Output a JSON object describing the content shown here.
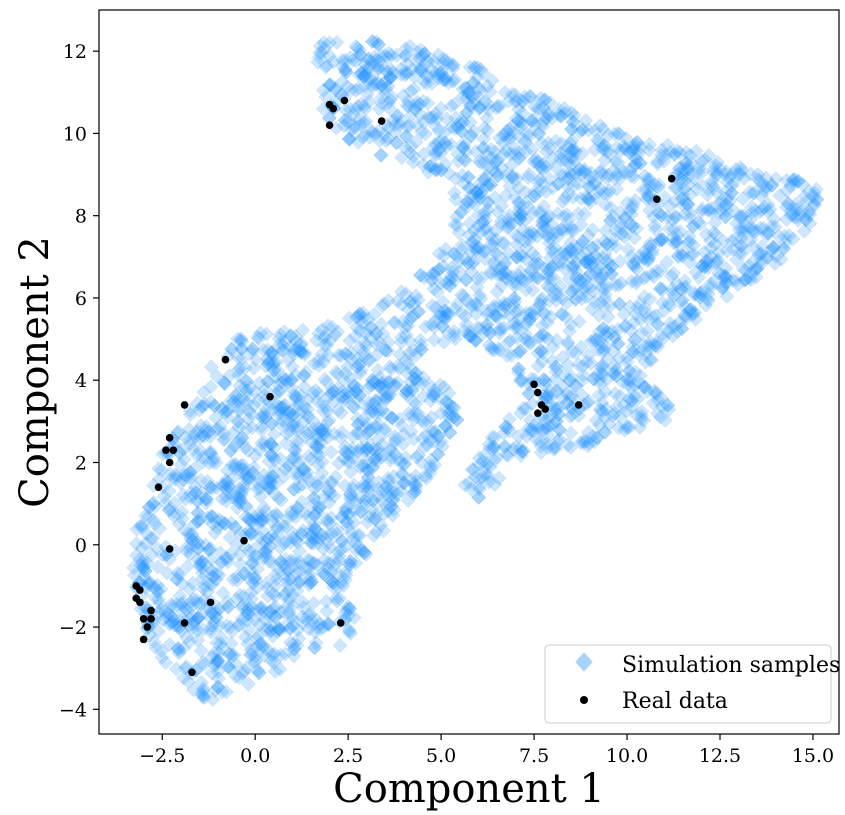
{
  "chart_data": {
    "type": "scatter",
    "title": "",
    "xlabel": "Component 1",
    "ylabel": "Component 2",
    "xlim": [
      -4.2,
      15.7
    ],
    "ylim": [
      -4.6,
      13.0
    ],
    "xticks": [
      -2.5,
      0.0,
      2.5,
      5.0,
      7.5,
      10.0,
      12.5,
      15.0
    ],
    "xtick_labels": [
      "−2.5",
      "0.0",
      "2.5",
      "5.0",
      "7.5",
      "10.0",
      "12.5",
      "15.0"
    ],
    "yticks": [
      -4,
      -2,
      0,
      2,
      4,
      6,
      8,
      10,
      12
    ],
    "ytick_labels": [
      "−4",
      "−2",
      "0",
      "2",
      "4",
      "6",
      "8",
      "10",
      "12"
    ],
    "grid": false,
    "legend_position": "lower-right",
    "series": [
      {
        "name": "Simulation samples",
        "marker": "diamond",
        "color": "#1e90ff",
        "alpha": 0.22,
        "region_outline": [
          [
            1.6,
            12.2
          ],
          [
            3.0,
            12.3
          ],
          [
            4.5,
            12.1
          ],
          [
            6.0,
            11.6
          ],
          [
            7.5,
            11.0
          ],
          [
            9.0,
            10.3
          ],
          [
            10.5,
            9.8
          ],
          [
            12.0,
            9.6
          ],
          [
            13.5,
            9.0
          ],
          [
            14.6,
            8.9
          ],
          [
            15.2,
            8.6
          ],
          [
            14.9,
            7.5
          ],
          [
            14.0,
            6.8
          ],
          [
            13.0,
            6.2
          ],
          [
            12.0,
            5.6
          ],
          [
            11.0,
            4.8
          ],
          [
            10.5,
            4.0
          ],
          [
            11.0,
            3.8
          ],
          [
            11.3,
            3.1
          ],
          [
            10.7,
            2.9
          ],
          [
            9.5,
            2.5
          ],
          [
            8.4,
            2.3
          ],
          [
            7.8,
            2.2
          ],
          [
            7.3,
            2.3
          ],
          [
            7.0,
            2.0
          ],
          [
            6.5,
            1.5
          ],
          [
            6.0,
            1.0
          ],
          [
            5.6,
            1.4
          ],
          [
            6.2,
            2.5
          ],
          [
            7.0,
            3.2
          ],
          [
            7.2,
            3.6
          ],
          [
            6.8,
            4.5
          ],
          [
            5.8,
            5.0
          ],
          [
            4.6,
            4.8
          ],
          [
            4.3,
            4.2
          ],
          [
            5.3,
            3.8
          ],
          [
            5.5,
            3.0
          ],
          [
            5.0,
            2.3
          ],
          [
            4.5,
            1.2
          ],
          [
            3.5,
            0.2
          ],
          [
            2.8,
            -0.5
          ],
          [
            2.5,
            -1.2
          ],
          [
            2.7,
            -1.6
          ],
          [
            2.6,
            -2.3
          ],
          [
            2.0,
            -2.6
          ],
          [
            1.5,
            -2.5
          ],
          [
            0.5,
            -3.2
          ],
          [
            -0.5,
            -3.6
          ],
          [
            -1.0,
            -3.9
          ],
          [
            -1.8,
            -3.6
          ],
          [
            -2.5,
            -2.8
          ],
          [
            -3.0,
            -2.2
          ],
          [
            -3.2,
            -1.3
          ],
          [
            -3.3,
            -0.5
          ],
          [
            -3.2,
            0.5
          ],
          [
            -2.8,
            1.3
          ],
          [
            -2.4,
            2.5
          ],
          [
            -1.8,
            3.5
          ],
          [
            -1.2,
            4.3
          ],
          [
            -0.5,
            5.0
          ],
          [
            0.5,
            5.3
          ],
          [
            1.5,
            5.2
          ],
          [
            2.5,
            5.5
          ],
          [
            3.5,
            5.9
          ],
          [
            4.5,
            6.6
          ],
          [
            5.2,
            7.4
          ],
          [
            5.5,
            8.2
          ],
          [
            5.0,
            8.8
          ],
          [
            4.0,
            9.2
          ],
          [
            3.0,
            9.6
          ],
          [
            2.2,
            10.0
          ],
          [
            1.8,
            10.6
          ],
          [
            1.7,
            11.4
          ]
        ]
      },
      {
        "name": "Real data",
        "marker": "circle",
        "color": "#000000",
        "points": [
          [
            2.0,
            10.7
          ],
          [
            2.1,
            10.6
          ],
          [
            2.4,
            10.8
          ],
          [
            2.0,
            10.2
          ],
          [
            3.4,
            10.3
          ],
          [
            10.8,
            8.4
          ],
          [
            11.2,
            8.9
          ],
          [
            7.5,
            3.9
          ],
          [
            7.6,
            3.7
          ],
          [
            7.7,
            3.4
          ],
          [
            7.6,
            3.2
          ],
          [
            7.8,
            3.3
          ],
          [
            8.7,
            3.4
          ],
          [
            -0.8,
            4.5
          ],
          [
            0.4,
            3.6
          ],
          [
            -1.9,
            3.4
          ],
          [
            -2.3,
            2.6
          ],
          [
            -2.4,
            2.3
          ],
          [
            -2.2,
            2.3
          ],
          [
            -2.3,
            2.0
          ],
          [
            -2.6,
            1.4
          ],
          [
            -2.3,
            -0.1
          ],
          [
            -0.3,
            0.1
          ],
          [
            -3.2,
            -1.0
          ],
          [
            -3.1,
            -1.1
          ],
          [
            -3.2,
            -1.3
          ],
          [
            -3.1,
            -1.4
          ],
          [
            -2.8,
            -1.6
          ],
          [
            -1.2,
            -1.4
          ],
          [
            -3.0,
            -1.8
          ],
          [
            -2.8,
            -1.8
          ],
          [
            -1.9,
            -1.9
          ],
          [
            2.3,
            -1.9
          ],
          [
            -2.9,
            -2.0
          ],
          [
            -3.0,
            -2.3
          ],
          [
            -1.7,
            -3.1
          ]
        ]
      }
    ]
  }
}
